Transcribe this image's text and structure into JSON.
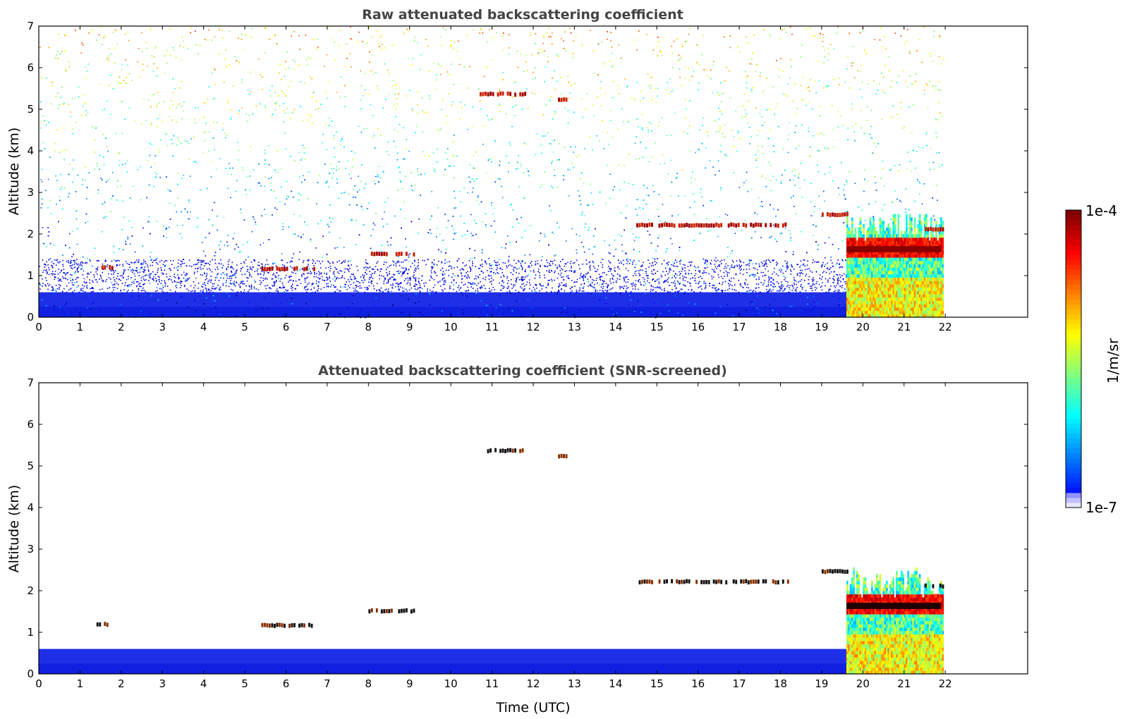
{
  "chart_data": [
    {
      "type": "heatmap",
      "title": "Raw attenuated backscattering coefficient",
      "ylabel": "Altitude (km)",
      "xlabel": "",
      "xlim": [
        0,
        24
      ],
      "ylim": [
        0,
        7
      ],
      "xticks": [
        "0",
        "1",
        "2",
        "3",
        "4",
        "5",
        "6",
        "7",
        "8",
        "9",
        "10",
        "11",
        "12",
        "13",
        "14",
        "15",
        "16",
        "17",
        "18",
        "19",
        "20",
        "21",
        "22"
      ],
      "yticks": [
        "0",
        "1",
        "2",
        "3",
        "4",
        "5",
        "6",
        "7"
      ],
      "data_extent_hours": [
        0,
        21.95
      ],
      "boundary_layer_top_km": 0.6,
      "noise_present": true,
      "features": [
        {
          "kind": "layer",
          "t": [
            1.4,
            1.8
          ],
          "alt": 1.18
        },
        {
          "kind": "layer",
          "t": [
            5.4,
            6.7
          ],
          "alt": 1.15
        },
        {
          "kind": "layer",
          "t": [
            8.0,
            9.1
          ],
          "alt": 1.5
        },
        {
          "kind": "layer",
          "t": [
            10.7,
            11.8
          ],
          "alt": 5.35
        },
        {
          "kind": "layer",
          "t": [
            12.6,
            12.8
          ],
          "alt": 5.22
        },
        {
          "kind": "layer",
          "t": [
            14.5,
            18.2
          ],
          "alt": 2.2
        },
        {
          "kind": "layer",
          "t": [
            19.0,
            19.6
          ],
          "alt": 2.45
        },
        {
          "kind": "layer",
          "t": [
            19.6,
            21.9
          ],
          "alt": 1.65
        },
        {
          "kind": "layer",
          "t": [
            21.5,
            21.95
          ],
          "alt": 2.1
        }
      ],
      "cloud_precip_block_hours": [
        19.6,
        21.95
      ],
      "colorbar": {
        "label": "1/m/sr",
        "min_label": "1e-7",
        "max_label": "1e-4",
        "scale": "log"
      }
    },
    {
      "type": "heatmap",
      "title": "Attenuated backscattering coefficient (SNR-screened)",
      "ylabel": "Altitude (km)",
      "xlabel": "Time (UTC)",
      "xlim": [
        0,
        24
      ],
      "ylim": [
        0,
        7
      ],
      "xticks": [
        "0",
        "1",
        "2",
        "3",
        "4",
        "5",
        "6",
        "7",
        "8",
        "9",
        "10",
        "11",
        "12",
        "13",
        "14",
        "15",
        "16",
        "17",
        "18",
        "19",
        "20",
        "21",
        "22"
      ],
      "yticks": [
        "0",
        "1",
        "2",
        "3",
        "4",
        "5",
        "6",
        "7"
      ],
      "data_extent_hours": [
        0,
        21.95
      ],
      "boundary_layer_top_km": 0.6,
      "noise_present": false,
      "cloud_precip_block_hours": [
        19.6,
        21.95
      ]
    }
  ]
}
